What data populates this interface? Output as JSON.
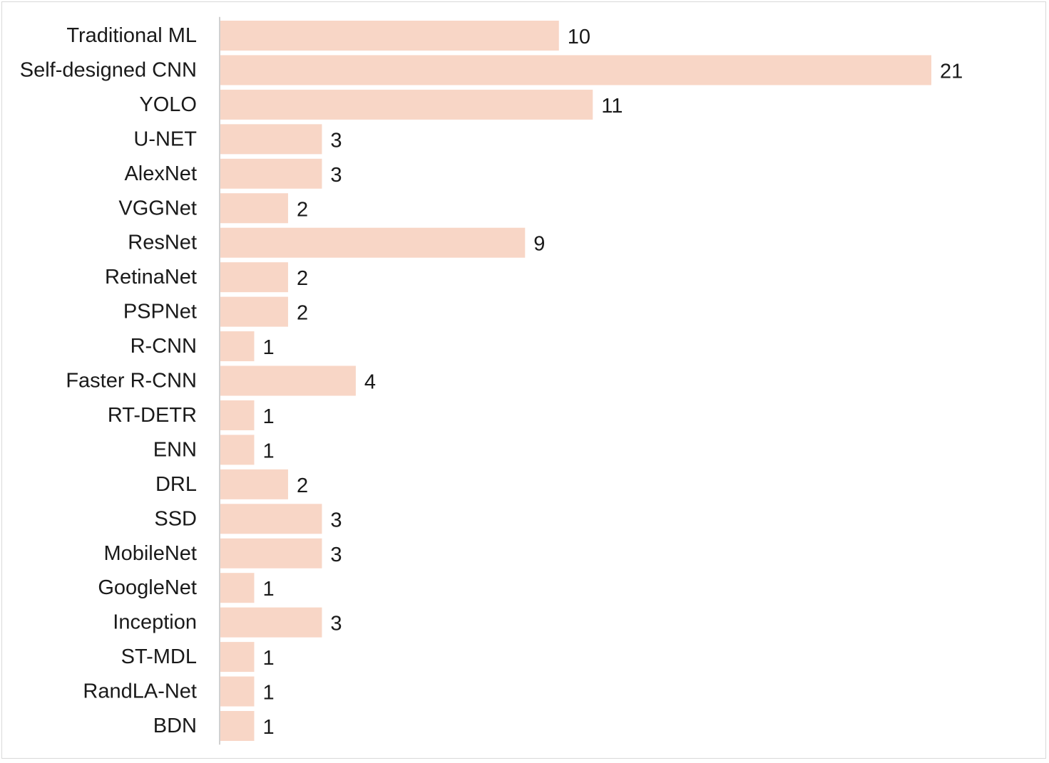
{
  "chart_data": {
    "type": "bar",
    "orientation": "horizontal",
    "title": "",
    "xlabel": "",
    "ylabel": "",
    "categories": [
      "Traditional ML",
      "Self-designed CNN",
      "YOLO",
      "U-NET",
      "AlexNet",
      "VGGNet",
      "ResNet",
      "RetinaNet",
      "PSPNet",
      "R-CNN",
      "Faster R-CNN",
      "RT-DETR",
      "ENN",
      "DRL",
      "SSD",
      "MobileNet",
      "GoogleNet",
      "Inception",
      "ST-MDL",
      "RandLA-Net",
      "BDN"
    ],
    "values": [
      10,
      21,
      11,
      3,
      3,
      2,
      9,
      2,
      2,
      1,
      4,
      1,
      1,
      2,
      3,
      3,
      1,
      3,
      1,
      1,
      1
    ],
    "xlim": [
      0,
      21
    ],
    "grid": false,
    "legend": "none",
    "data_labels": true,
    "bar_color": "#f8d6c6",
    "axis_color": "#d0d0d0",
    "text_color": "#1a1a1a"
  }
}
